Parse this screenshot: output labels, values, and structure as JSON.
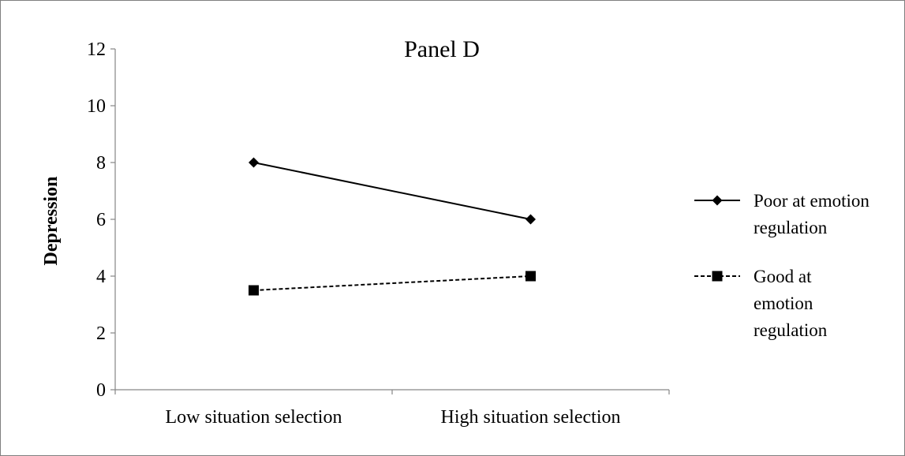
{
  "chart_data": {
    "type": "line",
    "title": "Panel D",
    "xlabel": "",
    "ylabel": "Depression",
    "categories": [
      "Low situation selection",
      "High situation selection"
    ],
    "ylim": [
      0,
      12
    ],
    "yticks": [
      0,
      2,
      4,
      6,
      8,
      10,
      12
    ],
    "grid": false,
    "legend_position": "right",
    "series": [
      {
        "name": "Poor at emotion regulation",
        "legend_lines": [
          "Poor at emotion",
          "regulation"
        ],
        "values": [
          8,
          6
        ],
        "marker": "diamond",
        "line_style": "solid",
        "color": "#000000"
      },
      {
        "name": "Good at emotion regulation",
        "legend_lines": [
          "Good at",
          "emotion",
          "regulation"
        ],
        "values": [
          3.5,
          4
        ],
        "marker": "square",
        "line_style": "dashed",
        "color": "#000000"
      }
    ]
  }
}
